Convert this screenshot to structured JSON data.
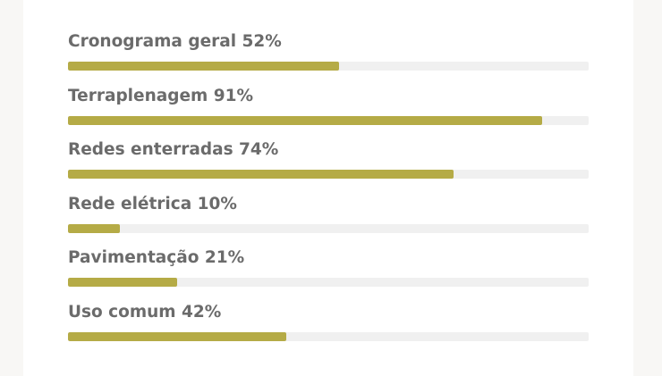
{
  "progress_items": [
    {
      "label": "Cronograma geral 52%",
      "percent": 52
    },
    {
      "label": "Terraplenagem 91%",
      "percent": 91
    },
    {
      "label": "Redes enterradas 74%",
      "percent": 74
    },
    {
      "label": "Rede elétrica 10%",
      "percent": 10
    },
    {
      "label": "Pavimentação 21%",
      "percent": 21
    },
    {
      "label": "Uso comum 42%",
      "percent": 42
    }
  ],
  "colors": {
    "bar_fill": "#b5ab46",
    "bar_track": "#f0f0f0",
    "label_text": "#6b6b6b",
    "page_background": "#f8f7f5",
    "card_background": "#ffffff"
  }
}
